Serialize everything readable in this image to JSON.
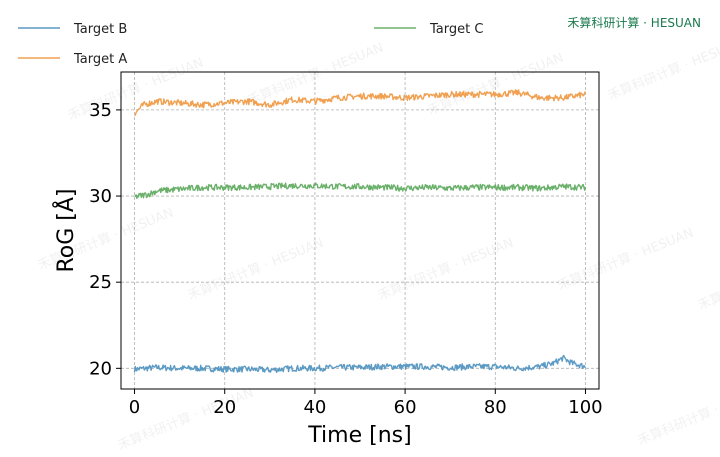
{
  "brand": {
    "text": "禾算科研计算 · HESUAN",
    "color": "#1a7a4c"
  },
  "watermark": {
    "text": "禾算科研计算 · HESUAN"
  },
  "chart_data": {
    "type": "line",
    "xlabel": "Time [ns]",
    "ylabel": "RoG [Å]",
    "xlim": [
      -3,
      103
    ],
    "ylim": [
      18.8,
      37.2
    ],
    "xticks": [
      0,
      20,
      40,
      60,
      80,
      100
    ],
    "yticks": [
      20,
      25,
      30,
      35
    ],
    "grid": true,
    "legend_placement": "top",
    "series": [
      {
        "name": "Target B",
        "color": "#5b9ac4",
        "x": [
          0,
          5,
          10,
          15,
          20,
          25,
          30,
          35,
          40,
          45,
          50,
          55,
          60,
          65,
          70,
          75,
          80,
          85,
          90,
          93,
          95,
          97,
          100
        ],
        "values": [
          19.95,
          20.05,
          20.0,
          20.0,
          19.95,
          19.95,
          19.9,
          20.0,
          20.0,
          20.05,
          20.05,
          20.1,
          20.1,
          20.1,
          20.05,
          20.1,
          20.1,
          20.0,
          20.1,
          20.3,
          20.6,
          20.3,
          20.1
        ]
      },
      {
        "name": "Target A",
        "color": "#f0a050",
        "x": [
          0,
          2,
          5,
          10,
          15,
          20,
          25,
          30,
          35,
          40,
          45,
          50,
          55,
          60,
          65,
          70,
          75,
          80,
          85,
          90,
          95,
          100
        ],
        "values": [
          34.8,
          35.3,
          35.5,
          35.4,
          35.3,
          35.4,
          35.5,
          35.3,
          35.6,
          35.5,
          35.7,
          35.8,
          35.8,
          35.7,
          35.8,
          35.9,
          35.9,
          35.9,
          36.0,
          35.7,
          35.7,
          35.9
        ]
      },
      {
        "name": "Target C",
        "color": "#6ab06a",
        "x": [
          0,
          3,
          5,
          10,
          15,
          20,
          25,
          30,
          35,
          40,
          45,
          50,
          55,
          60,
          65,
          70,
          75,
          80,
          85,
          90,
          95,
          100
        ],
        "values": [
          29.95,
          30.1,
          30.3,
          30.4,
          30.5,
          30.5,
          30.5,
          30.55,
          30.6,
          30.6,
          30.55,
          30.55,
          30.5,
          30.45,
          30.5,
          30.45,
          30.5,
          30.5,
          30.5,
          30.45,
          30.55,
          30.5
        ]
      }
    ]
  }
}
